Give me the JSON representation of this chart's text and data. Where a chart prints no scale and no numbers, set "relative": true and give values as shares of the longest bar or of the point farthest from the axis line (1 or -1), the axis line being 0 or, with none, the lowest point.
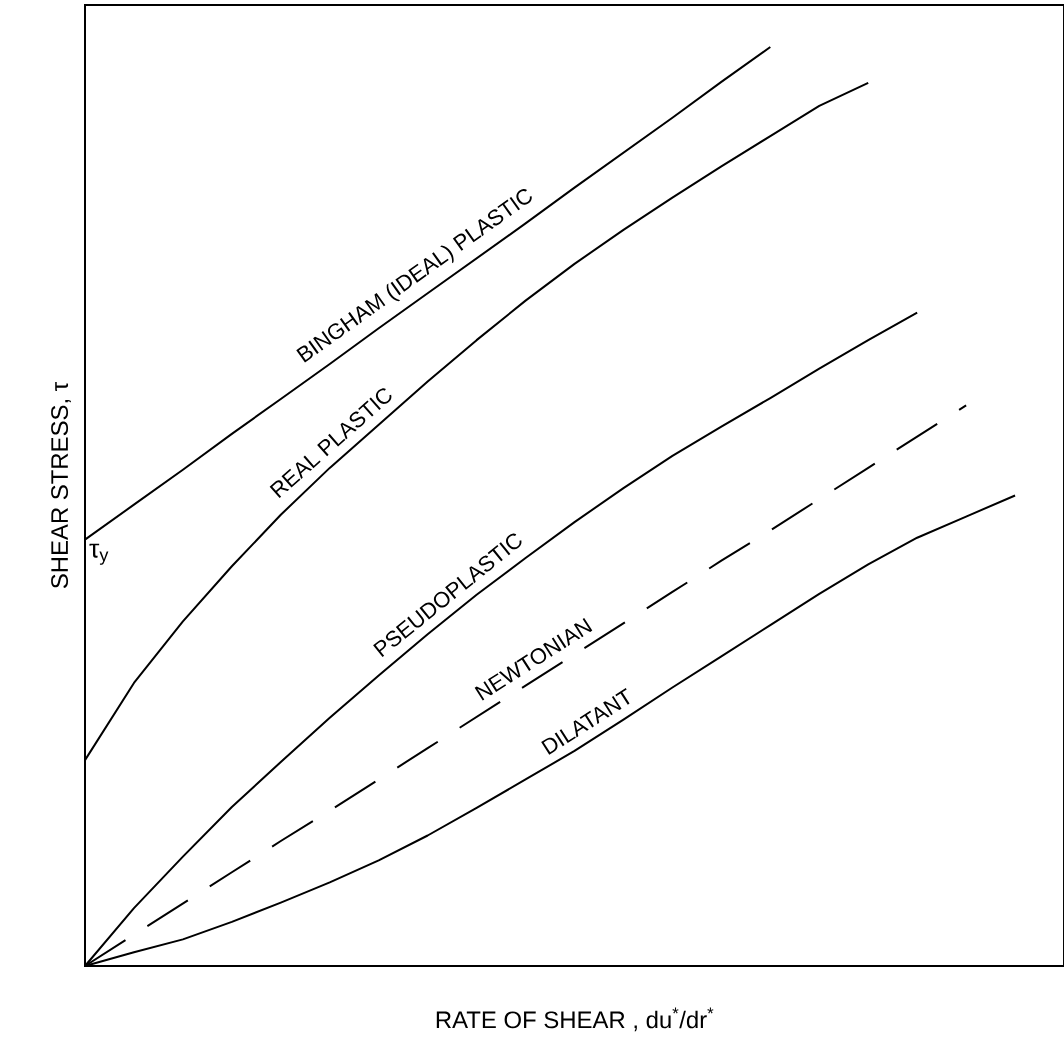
{
  "chart_data": {
    "type": "line",
    "relative": true,
    "xlabel": "RATE OF SHEAR , du$^{*}$/dr$^{*}$",
    "ylabel": "SHEAR STRESS, τ",
    "categories": [
      null,
      null,
      null,
      null,
      null,
      null,
      null,
      null,
      null,
      null,
      null,
      null,
      null,
      null,
      null,
      null,
      null,
      null,
      null,
      null
    ],
    "series": [
      {
        "name": "BINGHAM (IDEAL) PLASTIC",
        "color": "#000000",
        "values": [
          0.464,
          0.502,
          0.54,
          0.579,
          0.617,
          0.655,
          0.694,
          0.732,
          0.77,
          0.808,
          0.847,
          0.885,
          0.923,
          0.962,
          1.0,
          null,
          null,
          null,
          null,
          null
        ]
      },
      {
        "name": "REAL PLASTIC",
        "color": "#000000",
        "values": [
          0.224,
          0.308,
          0.375,
          0.435,
          0.491,
          0.542,
          0.589,
          0.636,
          0.681,
          0.724,
          0.764,
          0.801,
          0.836,
          0.87,
          0.903,
          0.936,
          0.961,
          null,
          null,
          null
        ]
      },
      {
        "name": "PSEUDOPLASTIC",
        "color": "#000000",
        "values": [
          0,
          0.063,
          0.119,
          0.173,
          0.222,
          0.27,
          0.316,
          0.361,
          0.404,
          0.444,
          0.483,
          0.52,
          0.555,
          0.587,
          0.618,
          0.65,
          0.681,
          0.711,
          null,
          null
        ]
      },
      {
        "name": "NEWTONIAN",
        "color": "#000000",
        "line_style": "dashed",
        "values": [
          0,
          0.034,
          0.068,
          0.102,
          0.136,
          0.169,
          0.203,
          0.237,
          0.271,
          0.305,
          0.339,
          0.373,
          0.407,
          0.441,
          0.474,
          0.508,
          0.542,
          0.576,
          0.61,
          null
        ]
      },
      {
        "name": "DILATANT",
        "color": "#000000",
        "values": [
          0,
          0.015,
          0.029,
          0.048,
          0.069,
          0.091,
          0.115,
          0.142,
          0.172,
          0.203,
          0.234,
          0.268,
          0.303,
          0.337,
          0.371,
          0.405,
          0.437,
          0.466,
          0.489,
          0.512
        ]
      }
    ],
    "annotations": [
      "τ$_{y}$"
    ]
  }
}
